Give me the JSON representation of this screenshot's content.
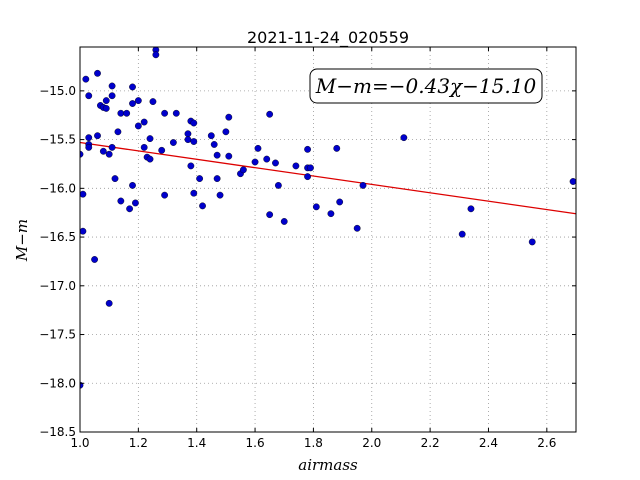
{
  "chart_data": {
    "type": "scatter",
    "title": "2021-11-24_020559",
    "xlabel": "airmass",
    "ylabel": "M−m",
    "xlim": [
      1.0,
      2.7
    ],
    "ylim": [
      -18.5,
      -14.55
    ],
    "y_inverted": true,
    "grid": true,
    "xticks": [
      "1.0",
      "1.2",
      "1.4",
      "1.6",
      "1.8",
      "2.0",
      "2.2",
      "2.4",
      "2.6"
    ],
    "yticks": [
      "−15.0",
      "−15.5",
      "−16.0",
      "−16.5",
      "−17.0",
      "−17.5",
      "−18.0",
      "−18.5"
    ],
    "xtick_values": [
      1.0,
      1.2,
      1.4,
      1.6,
      1.8,
      2.0,
      2.2,
      2.4,
      2.6
    ],
    "ytick_values": [
      -15.0,
      -15.5,
      -16.0,
      -16.5,
      -17.0,
      -17.5,
      -18.0,
      -18.5
    ],
    "annotation": "M−m=−0.43χ−15.10",
    "colors": {
      "points": "#0000cc",
      "fit": "#dd0000",
      "grid": "#999999"
    },
    "fit": {
      "slope": -0.43,
      "intercept": -15.1,
      "x_range": [
        1.0,
        2.7
      ]
    },
    "points": [
      [
        1.0,
        -15.65
      ],
      [
        1.01,
        -16.06
      ],
      [
        1.01,
        -16.44
      ],
      [
        1.0,
        -18.02
      ],
      [
        1.02,
        -14.88
      ],
      [
        1.03,
        -15.05
      ],
      [
        1.03,
        -15.48
      ],
      [
        1.03,
        -15.55
      ],
      [
        1.03,
        -15.58
      ],
      [
        1.05,
        -16.73
      ],
      [
        1.06,
        -14.82
      ],
      [
        1.06,
        -15.46
      ],
      [
        1.07,
        -15.15
      ],
      [
        1.08,
        -15.17
      ],
      [
        1.08,
        -15.62
      ],
      [
        1.09,
        -15.1
      ],
      [
        1.09,
        -15.18
      ],
      [
        1.1,
        -15.65
      ],
      [
        1.1,
        -17.18
      ],
      [
        1.11,
        -14.95
      ],
      [
        1.11,
        -15.05
      ],
      [
        1.11,
        -15.58
      ],
      [
        1.12,
        -15.9
      ],
      [
        1.13,
        -15.42
      ],
      [
        1.14,
        -16.13
      ],
      [
        1.14,
        -15.23
      ],
      [
        1.16,
        -15.23
      ],
      [
        1.17,
        -16.21
      ],
      [
        1.18,
        -15.97
      ],
      [
        1.18,
        -15.13
      ],
      [
        1.18,
        -14.96
      ],
      [
        1.19,
        -16.15
      ],
      [
        1.2,
        -15.1
      ],
      [
        1.2,
        -15.36
      ],
      [
        1.22,
        -15.58
      ],
      [
        1.22,
        -15.32
      ],
      [
        1.23,
        -15.68
      ],
      [
        1.24,
        -15.7
      ],
      [
        1.24,
        -15.49
      ],
      [
        1.25,
        -15.11
      ],
      [
        1.26,
        -14.58
      ],
      [
        1.26,
        -14.63
      ],
      [
        1.28,
        -15.61
      ],
      [
        1.29,
        -16.07
      ],
      [
        1.29,
        -15.23
      ],
      [
        1.32,
        -15.53
      ],
      [
        1.33,
        -15.23
      ],
      [
        1.37,
        -15.44
      ],
      [
        1.37,
        -15.5
      ],
      [
        1.38,
        -15.31
      ],
      [
        1.39,
        -15.33
      ],
      [
        1.39,
        -15.52
      ],
      [
        1.38,
        -15.77
      ],
      [
        1.39,
        -16.05
      ],
      [
        1.41,
        -15.9
      ],
      [
        1.42,
        -16.18
      ],
      [
        1.45,
        -15.46
      ],
      [
        1.46,
        -15.55
      ],
      [
        1.47,
        -15.66
      ],
      [
        1.47,
        -15.9
      ],
      [
        1.48,
        -16.07
      ],
      [
        1.5,
        -15.42
      ],
      [
        1.51,
        -15.67
      ],
      [
        1.51,
        -15.27
      ],
      [
        1.55,
        -15.85
      ],
      [
        1.56,
        -15.81
      ],
      [
        1.6,
        -15.73
      ],
      [
        1.61,
        -15.59
      ],
      [
        1.64,
        -15.7
      ],
      [
        1.65,
        -15.24
      ],
      [
        1.65,
        -16.27
      ],
      [
        1.67,
        -15.74
      ],
      [
        1.68,
        -15.97
      ],
      [
        1.7,
        -16.34
      ],
      [
        1.74,
        -15.77
      ],
      [
        1.78,
        -15.6
      ],
      [
        1.78,
        -15.79
      ],
      [
        1.79,
        -15.79
      ],
      [
        1.78,
        -15.88
      ],
      [
        1.81,
        -16.19
      ],
      [
        1.86,
        -16.26
      ],
      [
        1.88,
        -15.59
      ],
      [
        1.89,
        -16.14
      ],
      [
        1.95,
        -16.41
      ],
      [
        1.97,
        -15.97
      ],
      [
        2.11,
        -15.48
      ],
      [
        2.31,
        -16.47
      ],
      [
        2.34,
        -16.21
      ],
      [
        2.55,
        -16.55
      ],
      [
        2.69,
        -15.93
      ]
    ]
  }
}
